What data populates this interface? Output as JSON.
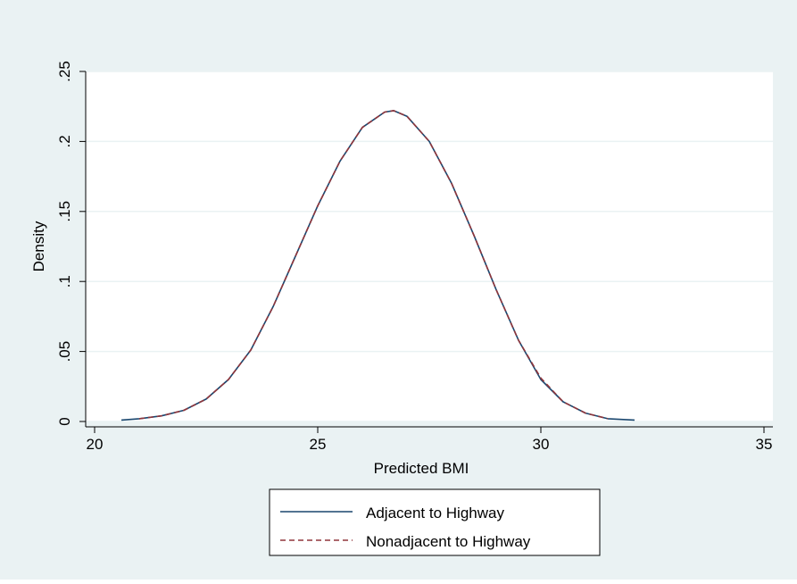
{
  "colors": {
    "outer_background": "#eaf2f3",
    "plot_background": "#ffffff",
    "gridline": "#eaf2f3",
    "axis": "#000000",
    "adjacent_line": "#1a476f",
    "nonadjacent_line": "#90353b"
  },
  "chart_data": {
    "type": "line",
    "xlabel": "Predicted BMI",
    "ylabel": "Density",
    "xlim": [
      19.8,
      35.2
    ],
    "ylim": [
      0,
      0.25
    ],
    "xticks": [
      20,
      25,
      30,
      35
    ],
    "xtick_labels": [
      "20",
      "25",
      "30",
      "35"
    ],
    "yticks": [
      0,
      0.05,
      0.1,
      0.15,
      0.2,
      0.25
    ],
    "ytick_labels": [
      "0",
      ".05",
      ".1",
      ".15",
      ".2",
      ".25"
    ],
    "grid": true,
    "legend_position": "bottom-center",
    "series": [
      {
        "name": "Adjacent to Highway",
        "line_style": "solid",
        "x": [
          20.6,
          21.0,
          21.5,
          22.0,
          22.5,
          23.0,
          23.5,
          24.0,
          24.5,
          25.0,
          25.5,
          26.0,
          26.5,
          26.7,
          27.0,
          27.5,
          28.0,
          28.5,
          29.0,
          29.5,
          30.0,
          30.5,
          31.0,
          31.5,
          32.1
        ],
        "y": [
          0.001,
          0.002,
          0.004,
          0.008,
          0.016,
          0.03,
          0.051,
          0.082,
          0.118,
          0.154,
          0.186,
          0.21,
          0.221,
          0.222,
          0.218,
          0.2,
          0.17,
          0.133,
          0.094,
          0.058,
          0.03,
          0.014,
          0.006,
          0.002,
          0.001
        ]
      },
      {
        "name": "Nonadjacent to Highway",
        "line_style": "dashed",
        "x": [
          21.0,
          21.5,
          22.0,
          22.5,
          23.0,
          23.5,
          24.0,
          24.5,
          25.0,
          25.5,
          26.0,
          26.5,
          26.7,
          27.0,
          27.5,
          28.0,
          28.5,
          29.0,
          29.5,
          30.0,
          30.5,
          31.0,
          31.5
        ],
        "y": [
          0.002,
          0.004,
          0.008,
          0.016,
          0.03,
          0.051,
          0.082,
          0.118,
          0.154,
          0.186,
          0.21,
          0.221,
          0.222,
          0.218,
          0.2,
          0.17,
          0.133,
          0.094,
          0.058,
          0.031,
          0.014,
          0.006,
          0.002
        ]
      }
    ]
  }
}
